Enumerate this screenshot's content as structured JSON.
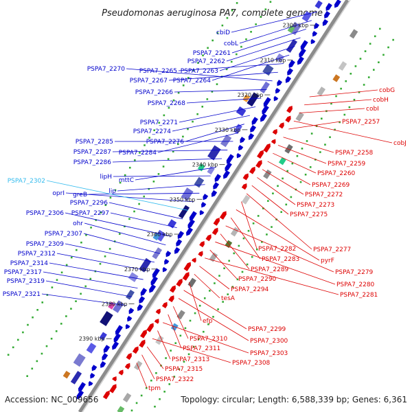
{
  "title": "Pseudomonas aeruginosa PA7, complete genome",
  "footer": {
    "accession": "Accession: NC_009656",
    "summary": "Topology: circular; Length: 6,588,339 bp; Genes: 6,361"
  },
  "colors": {
    "forward": "#0000cc",
    "reverse": "#dd0000",
    "highlight": "#33bbee",
    "backbone": "#8c8c8c",
    "dots": "#33aa33"
  },
  "scale_ticks": [
    "2300 kbp",
    "2310 kbp",
    "2320 kbp",
    "2330 kbp",
    "2340 kbp",
    "2350 kbp",
    "2360 kbp",
    "2370 kbp",
    "2380 kbp",
    "2390 kbp"
  ],
  "forward_labels": [
    "cbiD",
    "cobL",
    "PSPA7_2261",
    "PSPA7_2262",
    "PSPA7_2263",
    "PSPA7_2264",
    "PSPA7_2265",
    "PSPA7_2267",
    "PSPA7_2270",
    "PSPA7_2266",
    "PSPA7_2268",
    "PSPA7_2271",
    "PSPA7_2274",
    "PSPA7_2276",
    "PSPA7_2284",
    "PSPA7_2285",
    "PSPA7_2287",
    "PSPA7_2286",
    "mttC",
    "lipH",
    "lip",
    "greB",
    "oprI",
    "PSPA7_2302",
    "PSPA7_2296",
    "PSPA7_2297",
    "PSPA7_2306",
    "ohr",
    "PSPA7_2307",
    "PSPA7_2309",
    "PSPA7_2312",
    "PSPA7_2314",
    "PSPA7_2317",
    "PSPA7_2319",
    "PSPA7_2321"
  ],
  "reverse_labels": [
    "cobG",
    "cobH",
    "cobI",
    "cobJ",
    "PSPA7_2257",
    "PSPA7_2258",
    "PSPA7_2259",
    "PSPA7_2260",
    "PSPA7_2269",
    "PSPA7_2272",
    "PSPA7_2273",
    "PSPA7_2275",
    "PSPA7_2277",
    "PSPA7_2282",
    "pyrF",
    "PSPA7_2283",
    "PSPA7_2279",
    "PSPA7_2289",
    "PSPA7_2280",
    "PSPA7_2290",
    "PSPA7_2281",
    "PSPA7_2294",
    "tesA",
    "efp",
    "PSPA7_2299",
    "PSPA7_2300",
    "PSPA7_2310",
    "PSPA7_2311",
    "PSPA7_2303",
    "PSPA7_2313",
    "PSPA7_2308",
    "PSPA7_2315",
    "PSPA7_2322",
    "tpm"
  ]
}
